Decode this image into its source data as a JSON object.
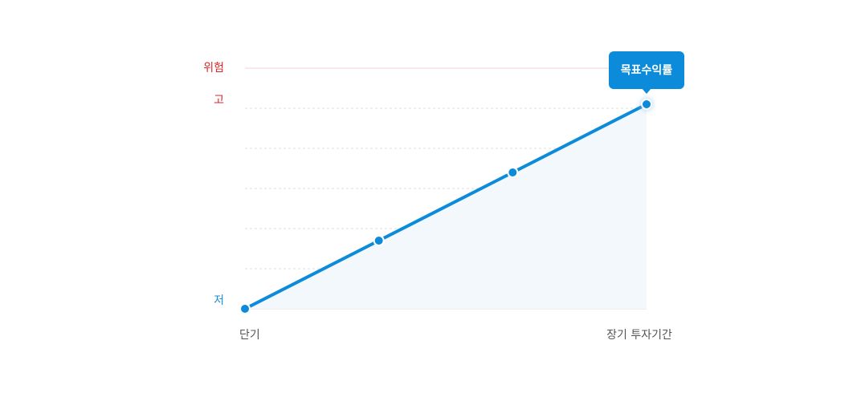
{
  "chart_data": {
    "type": "line",
    "categories": [
      "단기",
      null,
      null,
      "장기 투자기간"
    ],
    "values": [
      0,
      1.7,
      3.4,
      5.1
    ],
    "color": "#0b8bd9",
    "area_color": "#f3f8fc",
    "ylim": [
      0,
      6
    ],
    "yticks": [
      {
        "value": 0,
        "label": "저",
        "color": "#1a8fd8"
      },
      {
        "value": 5,
        "label": "고",
        "color": "#e0262b"
      },
      {
        "value": 6,
        "label": "위험",
        "color": "#e0262b"
      }
    ],
    "minor_yticks": [
      1,
      2,
      3,
      4
    ],
    "grid": true,
    "annotation": "목표수익률"
  }
}
